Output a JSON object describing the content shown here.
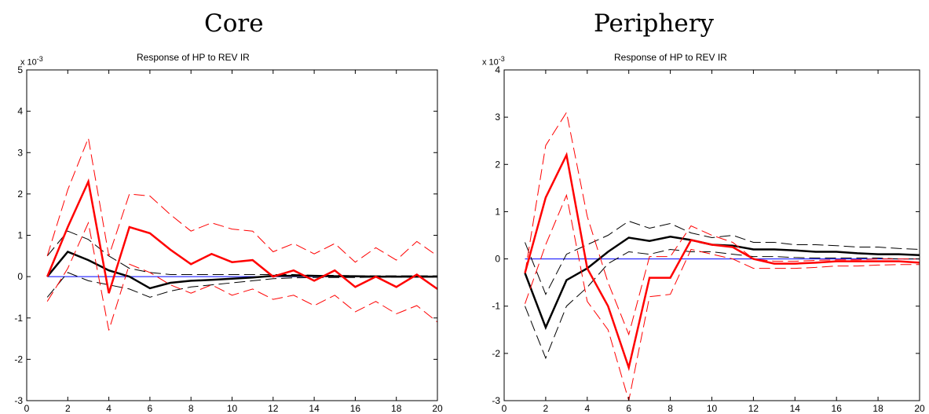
{
  "panels": {
    "left": {
      "heading": "Core"
    },
    "right": {
      "heading": "Periphery"
    }
  },
  "chart_data": [
    {
      "type": "line",
      "title": "Response of HP to REV IR",
      "scale_label": "x 10",
      "scale_exponent": "-3",
      "xlim": [
        0,
        20
      ],
      "ylim": [
        -3,
        5
      ],
      "xticks": [
        0,
        2,
        4,
        6,
        8,
        10,
        12,
        14,
        16,
        18,
        20
      ],
      "yticks": [
        -3,
        -2,
        -1,
        0,
        1,
        2,
        3,
        4,
        5
      ],
      "x": [
        1,
        2,
        3,
        4,
        5,
        6,
        7,
        8,
        9,
        10,
        11,
        12,
        13,
        14,
        15,
        16,
        17,
        18,
        19,
        20
      ],
      "series": [
        {
          "role": "zero",
          "color": "#0000ff",
          "dash": "solid",
          "width": 1,
          "values": [
            0,
            0,
            0,
            0,
            0,
            0,
            0,
            0,
            0,
            0,
            0,
            0,
            0,
            0,
            0,
            0,
            0,
            0,
            0,
            0
          ]
        },
        {
          "role": "black-upper",
          "color": "#000000",
          "dash": "dashed",
          "width": 1,
          "values": [
            0.5,
            1.1,
            0.9,
            0.5,
            0.2,
            0.1,
            0.05,
            0.05,
            0.05,
            0.05,
            0.05,
            0.05,
            0.05,
            0.03,
            0.03,
            0.02,
            0.02,
            0.02,
            0.02,
            0.02
          ]
        },
        {
          "role": "black-lower",
          "color": "#000000",
          "dash": "dashed",
          "width": 1,
          "values": [
            -0.5,
            0.1,
            -0.1,
            -0.2,
            -0.3,
            -0.5,
            -0.35,
            -0.25,
            -0.2,
            -0.15,
            -0.1,
            -0.05,
            -0.03,
            -0.02,
            -0.02,
            -0.02,
            -0.01,
            -0.01,
            -0.01,
            -0.01
          ]
        },
        {
          "role": "black-mean",
          "color": "#000000",
          "dash": "solid",
          "width": 2.5,
          "values": [
            0,
            0.6,
            0.4,
            0.15,
            0,
            -0.28,
            -0.15,
            -0.1,
            -0.08,
            -0.05,
            -0.02,
            0.02,
            0.02,
            0.02,
            0.01,
            0.01,
            0,
            0,
            0,
            0
          ]
        },
        {
          "role": "red-upper",
          "color": "#ff0000",
          "dash": "dashed",
          "width": 1,
          "values": [
            0.5,
            2.1,
            3.35,
            0.5,
            2.0,
            1.95,
            1.5,
            1.1,
            1.3,
            1.15,
            1.1,
            0.6,
            0.8,
            0.55,
            0.8,
            0.35,
            0.7,
            0.4,
            0.85,
            0.5
          ]
        },
        {
          "role": "red-lower",
          "color": "#ff0000",
          "dash": "dashed",
          "width": 1,
          "values": [
            -0.6,
            0.2,
            1.3,
            -1.3,
            0.3,
            0.1,
            -0.2,
            -0.4,
            -0.2,
            -0.45,
            -0.3,
            -0.55,
            -0.45,
            -0.7,
            -0.45,
            -0.85,
            -0.6,
            -0.9,
            -0.7,
            -1.1
          ]
        },
        {
          "role": "red-mean",
          "color": "#ff0000",
          "dash": "solid",
          "width": 2.5,
          "values": [
            0,
            1.2,
            2.3,
            -0.4,
            1.2,
            1.05,
            0.65,
            0.3,
            0.55,
            0.35,
            0.4,
            0,
            0.15,
            -0.1,
            0.15,
            -0.25,
            0,
            -0.25,
            0.05,
            -0.3
          ]
        }
      ]
    },
    {
      "type": "line",
      "title": "Response of HP to REV IR",
      "scale_label": "x 10",
      "scale_exponent": "-3",
      "xlim": [
        0,
        20
      ],
      "ylim": [
        -3,
        4
      ],
      "xticks": [
        0,
        2,
        4,
        6,
        8,
        10,
        12,
        14,
        16,
        18,
        20
      ],
      "yticks": [
        -3,
        -2,
        -1,
        0,
        1,
        2,
        3,
        4
      ],
      "x": [
        1,
        2,
        3,
        4,
        5,
        6,
        7,
        8,
        9,
        10,
        11,
        12,
        13,
        14,
        15,
        16,
        17,
        18,
        19,
        20
      ],
      "series": [
        {
          "role": "zero",
          "color": "#0000ff",
          "dash": "solid",
          "width": 1,
          "values": [
            0,
            0,
            0,
            0,
            0,
            0,
            0,
            0,
            0,
            0,
            0,
            0,
            0,
            0,
            0,
            0,
            0,
            0,
            0,
            0
          ]
        },
        {
          "role": "black-upper",
          "color": "#000000",
          "dash": "dashed",
          "width": 1,
          "values": [
            0.35,
            -0.75,
            0.1,
            0.3,
            0.5,
            0.8,
            0.65,
            0.75,
            0.55,
            0.45,
            0.5,
            0.35,
            0.35,
            0.3,
            0.3,
            0.28,
            0.25,
            0.25,
            0.22,
            0.2
          ]
        },
        {
          "role": "black-lower",
          "color": "#000000",
          "dash": "dashed",
          "width": 1,
          "values": [
            -1.0,
            -2.1,
            -1.0,
            -0.6,
            -0.1,
            0.15,
            0.1,
            0.2,
            0.15,
            0.15,
            0.1,
            0.05,
            0.05,
            0.03,
            0.02,
            0.02,
            0.02,
            0.02,
            0.0,
            0.0
          ]
        },
        {
          "role": "black-mean",
          "color": "#000000",
          "dash": "solid",
          "width": 2.5,
          "values": [
            -0.3,
            -1.45,
            -0.45,
            -0.2,
            0.15,
            0.45,
            0.38,
            0.47,
            0.4,
            0.3,
            0.28,
            0.2,
            0.2,
            0.18,
            0.15,
            0.15,
            0.12,
            0.1,
            0.1,
            0.08
          ]
        },
        {
          "role": "red-upper",
          "color": "#ff0000",
          "dash": "dashed",
          "width": 1,
          "values": [
            -0.3,
            2.4,
            3.1,
            0.9,
            -0.5,
            -1.6,
            0.05,
            0.05,
            0.7,
            0.5,
            0.35,
            0.0,
            -0.05,
            -0.05,
            -0.03,
            -0.02,
            -0.02,
            0,
            0,
            0
          ]
        },
        {
          "role": "red-lower",
          "color": "#ff0000",
          "dash": "dashed",
          "width": 1,
          "values": [
            -0.95,
            0.3,
            1.35,
            -0.9,
            -1.5,
            -3.0,
            -0.8,
            -0.75,
            0.2,
            0.1,
            0.0,
            -0.2,
            -0.2,
            -0.2,
            -0.18,
            -0.15,
            -0.15,
            -0.13,
            -0.12,
            -0.12
          ]
        },
        {
          "role": "red-mean",
          "color": "#ff0000",
          "dash": "solid",
          "width": 2.5,
          "values": [
            -0.3,
            1.3,
            2.2,
            -0.2,
            -1.0,
            -2.3,
            -0.4,
            -0.4,
            0.4,
            0.3,
            0.25,
            0.0,
            -0.1,
            -0.1,
            -0.08,
            -0.05,
            -0.05,
            -0.05,
            -0.05,
            -0.08
          ]
        }
      ]
    }
  ]
}
